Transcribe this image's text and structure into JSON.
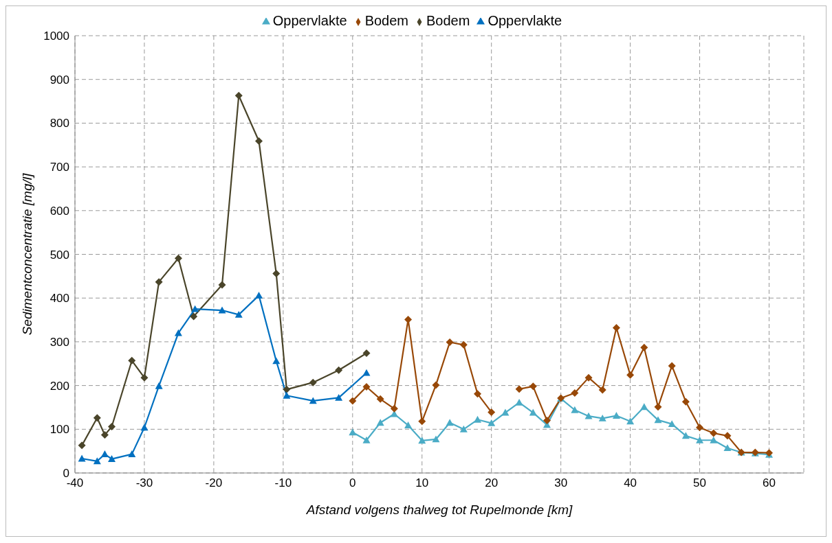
{
  "chart_data": {
    "type": "line",
    "xlabel": "Afstand volgens thalweg tot Rupelmonde [km]",
    "ylabel": "Sedimentconcentratie [mg/l]",
    "xlim": [
      -40,
      65
    ],
    "xticks": [
      -40,
      -30,
      -20,
      -10,
      0,
      10,
      20,
      30,
      40,
      50,
      60
    ],
    "ylim": [
      0,
      1000
    ],
    "yticks": [
      0,
      100,
      200,
      300,
      400,
      500,
      600,
      700,
      800,
      900,
      1000
    ],
    "grid": true,
    "legend": "top",
    "line_style": "solid",
    "series": [
      {
        "name": "Oppervlakte",
        "color": "#4bacc6",
        "marker": "triangle",
        "x": [
          0,
          2,
          4,
          6,
          8,
          10,
          12,
          14,
          16,
          18,
          20,
          22,
          24,
          26,
          28,
          30,
          32,
          34,
          36,
          38,
          40,
          42,
          44,
          46,
          48,
          50,
          52,
          54,
          56,
          58,
          60
        ],
        "values": [
          93,
          75,
          115,
          135,
          109,
          74,
          77,
          115,
          100,
          122,
          114,
          138,
          161,
          138,
          110,
          170,
          144,
          130,
          125,
          131,
          118,
          151,
          121,
          112,
          85,
          75,
          75,
          57,
          47,
          45,
          42
        ]
      },
      {
        "name": "Bodem",
        "color": "#984807",
        "marker": "diamond",
        "x": [
          0,
          2,
          4,
          6,
          8,
          10,
          12,
          14,
          16,
          18,
          20,
          22,
          24,
          26,
          28,
          30,
          32,
          34,
          36,
          38,
          40,
          42,
          44,
          46,
          48,
          50,
          52,
          54,
          56,
          58,
          60
        ],
        "values": [
          165,
          197,
          169,
          147,
          351,
          118,
          201,
          299,
          293,
          181,
          139,
          null,
          192,
          198,
          120,
          171,
          183,
          218,
          190,
          332,
          224,
          287,
          151,
          245,
          163,
          104,
          91,
          85,
          47,
          47,
          46
        ]
      },
      {
        "name": "Bodem",
        "color": "#4a452a",
        "marker": "diamond",
        "x": [
          -39,
          -36.8,
          -35.7,
          -34.7,
          -31.8,
          -30,
          -27.9,
          -25.1,
          -22.9,
          -18.8,
          -16.4,
          -13.5,
          -11,
          -9.5,
          -5.7,
          -2,
          2
        ],
        "values": [
          63,
          126,
          87,
          106,
          257,
          218,
          437,
          491,
          358,
          430,
          863,
          759,
          456,
          191,
          207,
          235,
          274
        ]
      },
      {
        "name": "Oppervlakte",
        "color": "#0070c0",
        "marker": "triangle",
        "x": [
          -39,
          -36.8,
          -35.7,
          -34.7,
          -31.8,
          -30,
          -27.9,
          -25.1,
          -22.7,
          -18.8,
          -16.4,
          -13.5,
          -11,
          -9.5,
          -5.7,
          -2,
          2
        ],
        "values": [
          33,
          27,
          43,
          32,
          43,
          104,
          199,
          320,
          375,
          372,
          362,
          406,
          256,
          177,
          165,
          172,
          229
        ]
      }
    ]
  }
}
